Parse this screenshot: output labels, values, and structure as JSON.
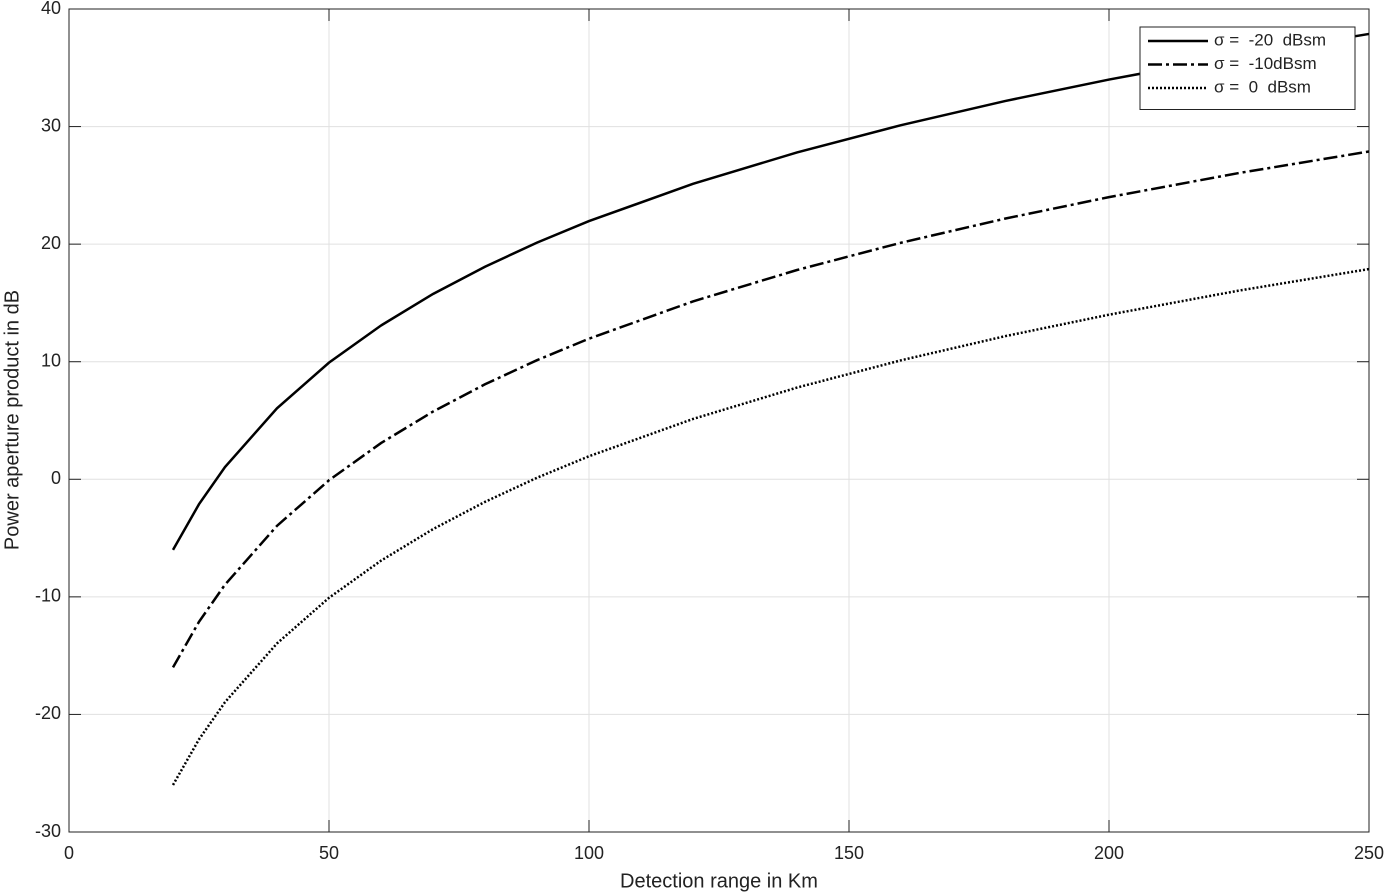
{
  "chart_data": {
    "type": "line",
    "x_label": "Detection range in Km",
    "y_label": "Power aperture product in dB",
    "x": [
      20,
      25,
      30,
      40,
      50,
      60,
      70,
      80,
      90,
      100,
      120,
      140,
      160,
      180,
      200,
      225,
      250
    ],
    "series": [
      {
        "name": "σ =  -20  dBsm",
        "color": "#000000",
        "dash": "solid",
        "values": [
          -6,
          -2.12,
          1.04,
          6.04,
          9.92,
          13.08,
          15.76,
          18.08,
          20.13,
          21.96,
          25.13,
          27.8,
          30.12,
          32.17,
          34,
          36.05,
          37.88
        ]
      },
      {
        "name": "σ =  -10dBsm",
        "color": "#000000",
        "dash": "dashdot",
        "values": [
          -16,
          -12.12,
          -8.96,
          -3.96,
          -0.08,
          3.08,
          5.76,
          8.08,
          10.13,
          11.96,
          15.13,
          17.8,
          20.12,
          22.17,
          24,
          26.05,
          27.88
        ]
      },
      {
        "name": "σ =  0  dBsm",
        "color": "#000000",
        "dash": "dotted",
        "values": [
          -26,
          -22.12,
          -18.96,
          -13.96,
          -10.08,
          -6.92,
          -4.24,
          -1.92,
          0.13,
          1.96,
          5.13,
          7.8,
          10.12,
          12.17,
          14,
          16.05,
          17.88
        ]
      }
    ],
    "xlim": [
      0,
      250
    ],
    "xticks": [
      0,
      50,
      100,
      150,
      200,
      250
    ],
    "ylim": [
      -30,
      40
    ],
    "yticks": [
      -30,
      -20,
      -10,
      0,
      10,
      20,
      30,
      40
    ],
    "grid": true,
    "legend": "top-right"
  }
}
